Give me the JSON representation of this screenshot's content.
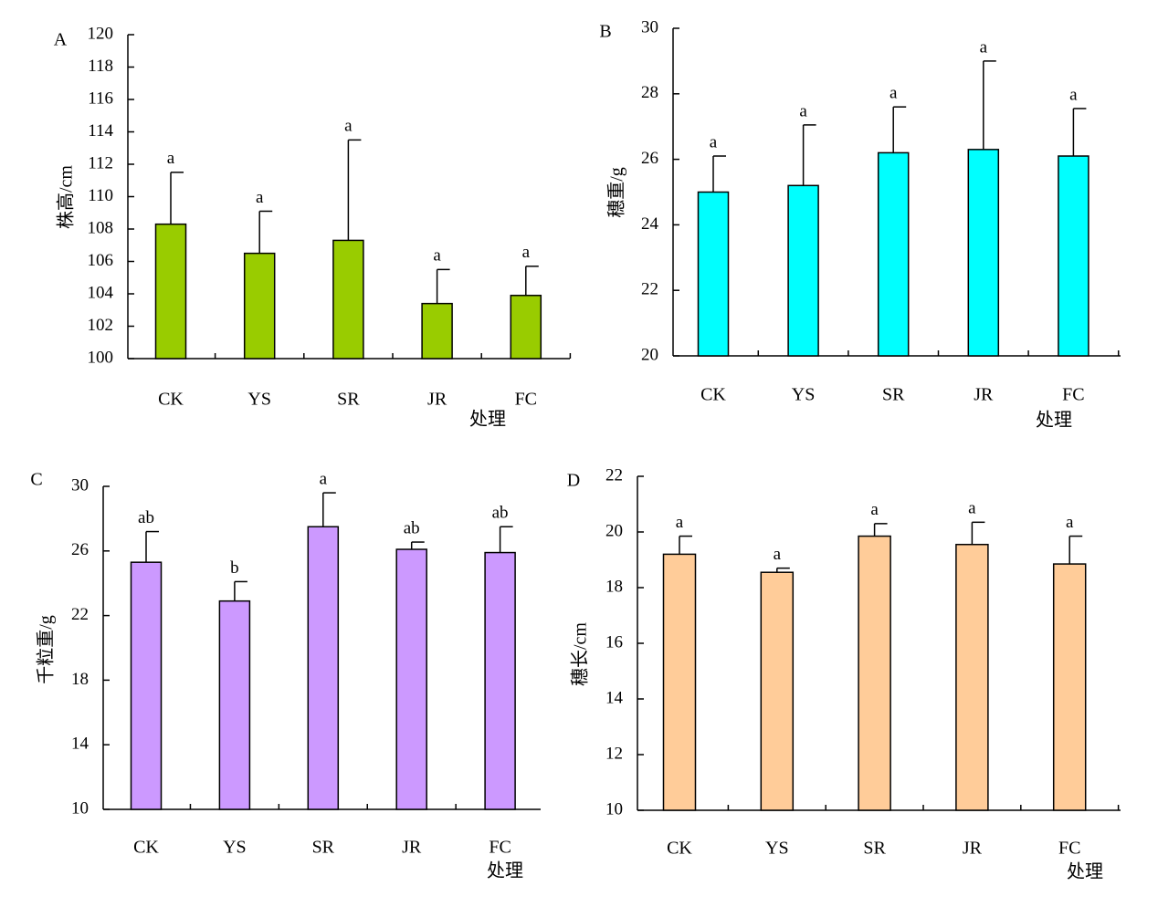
{
  "chart_data": [
    {
      "type": "bar",
      "panel": "A",
      "categories": [
        "CK",
        "YS",
        "SR",
        "JR",
        "FC"
      ],
      "values": [
        108.3,
        106.5,
        107.3,
        103.4,
        103.9
      ],
      "errors": [
        3.2,
        2.6,
        6.2,
        2.1,
        1.8
      ],
      "significance": [
        "a",
        "a",
        "a",
        "a",
        "a"
      ],
      "ylabel": "株高/cm",
      "xlabel": "处理",
      "ylim": [
        100,
        120
      ],
      "yticks": [
        100,
        102,
        104,
        106,
        108,
        110,
        112,
        114,
        116,
        118,
        120
      ],
      "color": "#99cc00"
    },
    {
      "type": "bar",
      "panel": "B",
      "categories": [
        "CK",
        "YS",
        "SR",
        "JR",
        "FC"
      ],
      "values": [
        25.0,
        25.2,
        26.2,
        26.3,
        26.1
      ],
      "errors": [
        1.1,
        1.85,
        1.4,
        2.7,
        1.45
      ],
      "significance": [
        "a",
        "a",
        "a",
        "a",
        "a"
      ],
      "ylabel": "穗重/g",
      "xlabel": "处理",
      "ylim": [
        20,
        30
      ],
      "yticks": [
        20,
        22,
        24,
        26,
        28,
        30
      ],
      "color": "#00ffff"
    },
    {
      "type": "bar",
      "panel": "C",
      "categories": [
        "CK",
        "YS",
        "SR",
        "JR",
        "FC"
      ],
      "values": [
        25.3,
        22.9,
        27.5,
        26.1,
        25.9
      ],
      "errors": [
        1.9,
        1.2,
        2.1,
        0.45,
        1.6
      ],
      "significance": [
        "ab",
        "b",
        "a",
        "ab",
        "ab"
      ],
      "ylabel": "千粒重/g",
      "xlabel": "处理",
      "ylim": [
        10,
        30
      ],
      "yticks": [
        10,
        14,
        18,
        22,
        26,
        30
      ],
      "color": "#cc99ff"
    },
    {
      "type": "bar",
      "panel": "D",
      "categories": [
        "CK",
        "YS",
        "SR",
        "JR",
        "FC"
      ],
      "values": [
        19.2,
        18.55,
        19.85,
        19.55,
        18.85
      ],
      "errors": [
        0.65,
        0.15,
        0.45,
        0.8,
        1.0
      ],
      "significance": [
        "a",
        "a",
        "a",
        "a",
        "a"
      ],
      "ylabel": "穗长/cm",
      "xlabel": "处理",
      "ylim": [
        10,
        22
      ],
      "yticks": [
        10,
        12,
        14,
        16,
        18,
        20,
        22
      ],
      "color": "#ffcc99"
    }
  ]
}
